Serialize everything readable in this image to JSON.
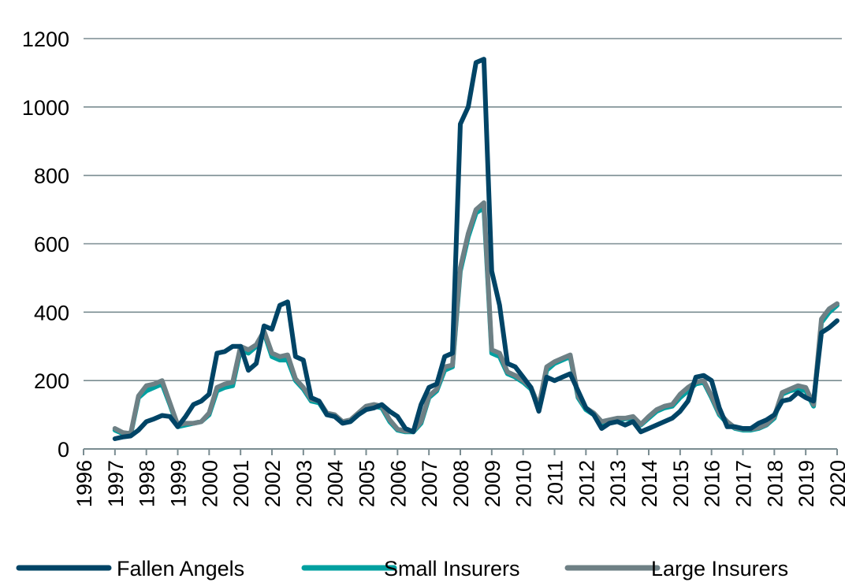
{
  "chart_data": {
    "type": "line",
    "title": "",
    "xlabel": "",
    "ylabel": "",
    "xlim": [
      1996,
      2020
    ],
    "ylim": [
      0,
      1200
    ],
    "y_ticks": [
      "0",
      "200",
      "400",
      "600",
      "800",
      "1000",
      "1200"
    ],
    "x_ticks": [
      "1996",
      "1997",
      "1998",
      "1999",
      "2000",
      "2001",
      "2002",
      "2003",
      "2004",
      "2005",
      "2006",
      "2007",
      "2008",
      "2009",
      "2010",
      "2011",
      "2012",
      "2013",
      "2014",
      "2015",
      "2016",
      "2017",
      "2018",
      "2019",
      "2020"
    ],
    "grid": "horizontal",
    "legend_position": "bottom",
    "x": [
      1997.0,
      1997.25,
      1997.5,
      1997.75,
      1998.0,
      1998.25,
      1998.5,
      1998.75,
      1999.0,
      1999.25,
      1999.5,
      1999.75,
      2000.0,
      2000.25,
      2000.5,
      2000.75,
      2001.0,
      2001.25,
      2001.5,
      2001.75,
      2002.0,
      2002.25,
      2002.5,
      2002.75,
      2003.0,
      2003.25,
      2003.5,
      2003.75,
      2004.0,
      2004.25,
      2004.5,
      2004.75,
      2005.0,
      2005.25,
      2005.5,
      2005.75,
      2006.0,
      2006.25,
      2006.5,
      2006.75,
      2007.0,
      2007.25,
      2007.5,
      2007.75,
      2008.0,
      2008.25,
      2008.5,
      2008.75,
      2009.0,
      2009.25,
      2009.5,
      2009.75,
      2010.0,
      2010.25,
      2010.5,
      2010.75,
      2011.0,
      2011.25,
      2011.5,
      2011.75,
      2012.0,
      2012.25,
      2012.5,
      2012.75,
      2013.0,
      2013.25,
      2013.5,
      2013.75,
      2014.0,
      2014.25,
      2014.5,
      2014.75,
      2015.0,
      2015.25,
      2015.5,
      2015.75,
      2016.0,
      2016.25,
      2016.5,
      2016.75,
      2017.0,
      2017.25,
      2017.5,
      2017.75,
      2018.0,
      2018.25,
      2018.5,
      2018.75,
      2019.0,
      2019.25,
      2019.5,
      2019.75,
      2020.0
    ],
    "series": [
      {
        "name": "Fallen Angels",
        "color": "#004466",
        "values": [
          30,
          35,
          38,
          55,
          80,
          88,
          98,
          95,
          65,
          95,
          130,
          140,
          160,
          280,
          285,
          300,
          300,
          230,
          250,
          360,
          350,
          420,
          430,
          270,
          260,
          150,
          140,
          100,
          95,
          75,
          80,
          100,
          115,
          120,
          130,
          110,
          95,
          60,
          50,
          130,
          180,
          190,
          270,
          280,
          950,
          1000,
          1130,
          1140,
          520,
          420,
          250,
          240,
          210,
          180,
          110,
          210,
          200,
          210,
          220,
          170,
          120,
          100,
          60,
          75,
          80,
          70,
          80,
          50,
          60,
          70,
          80,
          90,
          110,
          140,
          210,
          215,
          200,
          120,
          65,
          65,
          60,
          60,
          75,
          85,
          100,
          140,
          145,
          165,
          150,
          140,
          340,
          355,
          375
        ]
      },
      {
        "name": "Small Insurers",
        "color": "#00A0A0",
        "values": [
          55,
          45,
          42,
          150,
          170,
          180,
          190,
          130,
          65,
          70,
          75,
          80,
          100,
          170,
          180,
          185,
          290,
          280,
          300,
          340,
          270,
          260,
          260,
          200,
          175,
          140,
          135,
          100,
          95,
          78,
          80,
          100,
          120,
          125,
          120,
          80,
          55,
          50,
          50,
          75,
          150,
          170,
          230,
          240,
          520,
          620,
          690,
          705,
          280,
          270,
          220,
          210,
          195,
          175,
          120,
          230,
          250,
          260,
          270,
          150,
          115,
          100,
          75,
          80,
          85,
          88,
          90,
          70,
          90,
          110,
          120,
          125,
          150,
          170,
          190,
          195,
          150,
          100,
          75,
          60,
          55,
          55,
          60,
          70,
          90,
          160,
          170,
          175,
          170,
          125,
          370,
          400,
          420
        ]
      },
      {
        "name": "Large Insurers",
        "color": "#6E8085",
        "values": [
          60,
          48,
          45,
          155,
          185,
          190,
          200,
          135,
          70,
          75,
          75,
          80,
          105,
          180,
          190,
          195,
          300,
          290,
          305,
          345,
          280,
          270,
          275,
          205,
          180,
          145,
          140,
          105,
          100,
          80,
          85,
          105,
          125,
          130,
          125,
          85,
          58,
          52,
          52,
          80,
          155,
          175,
          240,
          245,
          530,
          630,
          700,
          720,
          290,
          280,
          225,
          215,
          200,
          180,
          125,
          240,
          255,
          265,
          275,
          155,
          120,
          105,
          80,
          85,
          90,
          90,
          95,
          72,
          95,
          115,
          125,
          130,
          160,
          180,
          195,
          200,
          155,
          105,
          80,
          62,
          58,
          58,
          62,
          72,
          95,
          165,
          175,
          185,
          180,
          130,
          380,
          410,
          425
        ]
      }
    ]
  },
  "legend": {
    "items": [
      "Fallen Angels",
      "Small Insurers",
      "Large Insurers"
    ]
  }
}
